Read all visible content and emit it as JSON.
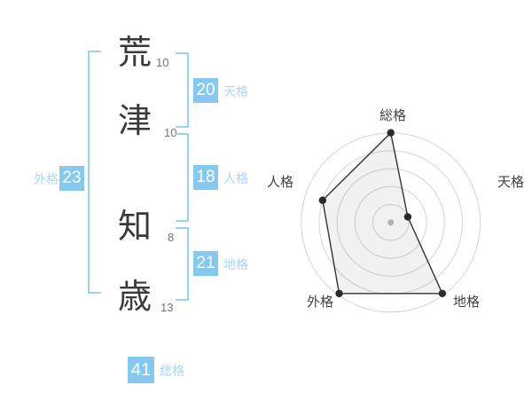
{
  "name": {
    "characters": [
      {
        "char": "荒",
        "strokes": "10"
      },
      {
        "char": "津",
        "strokes": "10"
      },
      {
        "char": "知",
        "strokes": "8"
      },
      {
        "char": "歳",
        "strokes": "13"
      }
    ]
  },
  "kaku": {
    "tenkaku": {
      "label": "天格",
      "value": "20"
    },
    "jinkaku": {
      "label": "人格",
      "value": "18"
    },
    "chikaku": {
      "label": "地格",
      "value": "21"
    },
    "gaikaku": {
      "label": "外格",
      "value": "23"
    },
    "soukaku": {
      "label": "総格",
      "value": "41"
    }
  },
  "colors": {
    "badge_blue": "#85C9F0",
    "label_blue": "#A6D7F6",
    "bracket_blue": "#9CD2F6",
    "ink": "#3A3A3A",
    "stroke_number_gray": "#777777",
    "ring_gray": "#D5D5D5",
    "point_dark": "#2B2B2B",
    "polygon_fill": "rgba(0,0,0,0.055)",
    "center_dot": "#BCBCBC"
  },
  "chart_data": {
    "type": "radar",
    "title": "",
    "categories": [
      "総格",
      "天格",
      "地格",
      "外格",
      "人格"
    ],
    "values": [
      100,
      20,
      98,
      98,
      80
    ],
    "max": 100,
    "rings": 5,
    "grid": "concentric-circles",
    "legend": "none"
  }
}
